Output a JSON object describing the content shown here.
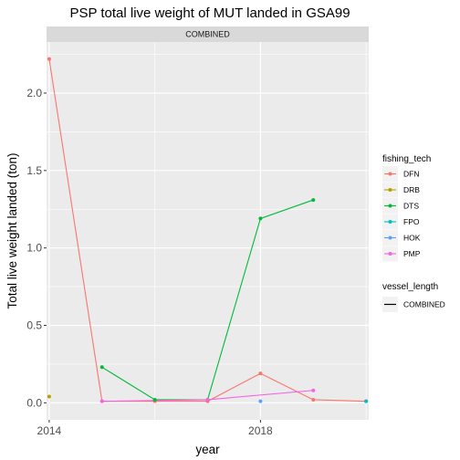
{
  "chart_data": {
    "type": "line",
    "title": "PSP total live weight of MUT landed in GSA99",
    "facet": "COMBINED",
    "xlabel": "year",
    "ylabel": "Total live weight landed (ton)",
    "xlim": [
      2013.95,
      2020.05
    ],
    "ylim": [
      -0.11,
      2.33
    ],
    "x_ticks": [
      2014,
      2018
    ],
    "y_ticks": [
      0.0,
      0.5,
      1.0,
      1.5,
      2.0
    ],
    "y_tick_labels": [
      "0.0",
      "0.5",
      "1.0",
      "1.5",
      "2.0"
    ],
    "grid": true,
    "legend_position": "right",
    "legend_title": "fishing_tech",
    "legend2_title": "vessel_length",
    "legend2_entries": [
      "COMBINED"
    ],
    "series": [
      {
        "name": "DFN",
        "color": "#F8766D",
        "x": [
          2014,
          2015,
          2016,
          2017,
          2018,
          2019,
          2020
        ],
        "y": [
          2.22,
          0.01,
          0.01,
          0.01,
          0.19,
          0.02,
          0.01
        ]
      },
      {
        "name": "DRB",
        "color": "#B79F00",
        "x": [
          2014
        ],
        "y": [
          0.04
        ]
      },
      {
        "name": "DTS",
        "color": "#00BA38",
        "x": [
          2015,
          2016,
          2017,
          2018,
          2019
        ],
        "y": [
          0.23,
          0.02,
          0.02,
          1.19,
          1.31
        ]
      },
      {
        "name": "FPO",
        "color": "#00BFC4",
        "x": [
          2020
        ],
        "y": [
          0.01
        ]
      },
      {
        "name": "HOK",
        "color": "#619CFF",
        "x": [
          2018
        ],
        "y": [
          0.01
        ]
      },
      {
        "name": "PMP",
        "color": "#F564E3",
        "x": [
          2015,
          2017,
          2019
        ],
        "y": [
          0.01,
          0.02,
          0.08
        ]
      }
    ]
  }
}
